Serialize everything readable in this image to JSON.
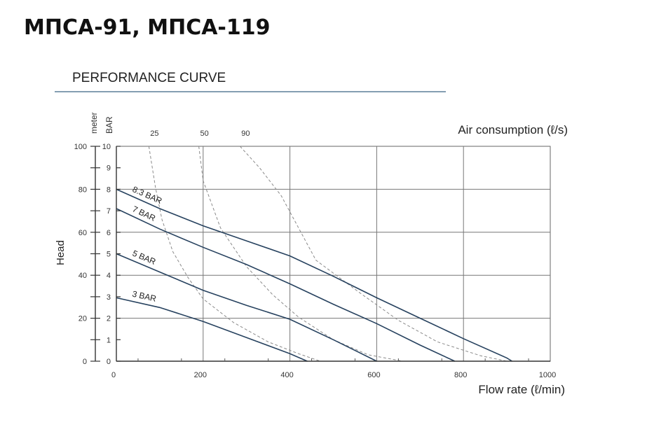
{
  "page": {
    "title": "МПСА-91, МПСА-119"
  },
  "chart_data": {
    "type": "line",
    "title": "PERFORMANCE CURVE",
    "xlabel": "Flow rate (ℓ/min)",
    "ylabel": "Head",
    "y_unit_left": "meter",
    "y_unit_right": "BAR",
    "air_label": "Air consumption (ℓ/s)",
    "xlim": [
      0,
      1000
    ],
    "ylim_meter": [
      0,
      100
    ],
    "ylim_bar": [
      0,
      10
    ],
    "x_ticks": [
      "0",
      "200",
      "400",
      "600",
      "800",
      "1000"
    ],
    "y_ticks_meter": [
      "0",
      "20",
      "40",
      "60",
      "80",
      "100"
    ],
    "y_ticks_bar": [
      "0",
      "1",
      "2",
      "3",
      "4",
      "5",
      "6",
      "7",
      "8",
      "9",
      "10"
    ],
    "grid": true,
    "colors": {
      "pressure": "#27425f",
      "air": "#8a8a8a",
      "rule": "#5b7f98"
    },
    "series": [
      {
        "name": "8.3 BAR",
        "x": [
          0,
          100,
          200,
          300,
          400,
          500,
          600,
          700,
          800,
          900,
          912
        ],
        "y": [
          8.0,
          7.1,
          6.3,
          5.6,
          4.9,
          3.95,
          2.95,
          2.0,
          1.05,
          0.15,
          0
        ]
      },
      {
        "name": "7 BAR",
        "x": [
          0,
          100,
          200,
          300,
          400,
          500,
          600,
          700,
          780
        ],
        "y": [
          7.1,
          6.15,
          5.3,
          4.5,
          3.6,
          2.65,
          1.75,
          0.75,
          0
        ]
      },
      {
        "name": "5 BAR",
        "x": [
          0,
          100,
          200,
          300,
          400,
          500,
          600
        ],
        "y": [
          5.0,
          4.15,
          3.3,
          2.6,
          1.95,
          1.0,
          0
        ]
      },
      {
        "name": "3 BAR",
        "x": [
          0,
          100,
          200,
          300,
          400,
          440
        ],
        "y": [
          2.95,
          2.5,
          1.85,
          1.1,
          0.35,
          0
        ]
      }
    ],
    "air_curves": [
      {
        "name": "25",
        "x": [
          75,
          90,
          105,
          130,
          165,
          200,
          270,
          350,
          420,
          470
        ],
        "y": [
          10,
          8.1,
          6.6,
          5.1,
          3.9,
          2.9,
          1.8,
          0.9,
          0.35,
          0
        ]
      },
      {
        "name": "50",
        "x": [
          190,
          200,
          240,
          300,
          360,
          420,
          500,
          580,
          660
        ],
        "y": [
          10,
          8.4,
          6.2,
          4.4,
          3.1,
          2.05,
          1.0,
          0.3,
          0
        ]
      },
      {
        "name": "90",
        "x": [
          285,
          330,
          380,
          460,
          560,
          650,
          740,
          840,
          900
        ],
        "y": [
          10,
          9.0,
          7.7,
          4.7,
          3.2,
          1.9,
          0.9,
          0.25,
          0
        ]
      }
    ]
  }
}
